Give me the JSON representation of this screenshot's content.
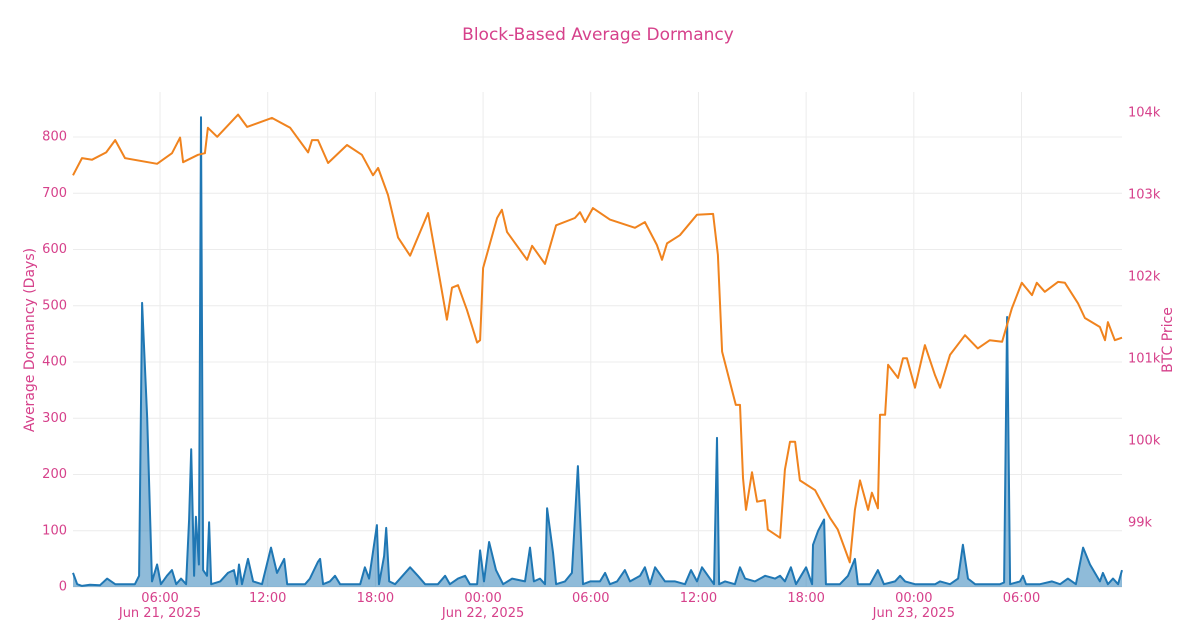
{
  "chart_data": {
    "type": "line",
    "title": "Block-Based Average Dormancy",
    "ylabel": "Average Dormancy (Days)",
    "y2label": "BTC Price",
    "grid": true,
    "xlim": [
      "2025-06-21 01:09",
      "2025-06-23 11:36"
    ],
    "xticks": [
      {
        "value": "2025-06-21 06:00",
        "label": "06:00\nJun 21, 2025"
      },
      {
        "value": "2025-06-21 12:00",
        "label": "12:00"
      },
      {
        "value": "2025-06-21 18:00",
        "label": "18:00"
      },
      {
        "value": "2025-06-22 00:00",
        "label": "00:00\nJun 22, 2025"
      },
      {
        "value": "2025-06-22 06:00",
        "label": "06:00"
      },
      {
        "value": "2025-06-22 12:00",
        "label": "12:00"
      },
      {
        "value": "2025-06-22 18:00",
        "label": "18:00"
      },
      {
        "value": "2025-06-23 00:00",
        "label": "00:00\nJun 23, 2025"
      },
      {
        "value": "2025-06-23 06:00",
        "label": "06:00"
      }
    ],
    "ylim": [
      0,
      880
    ],
    "yticks": [
      0,
      100,
      200,
      300,
      400,
      500,
      600,
      700,
      800
    ],
    "y2lim": [
      98220,
      104256
    ],
    "y2ticks": [
      {
        "value": 99000,
        "label": "99k"
      },
      {
        "value": 100000,
        "label": "100k"
      },
      {
        "value": 101000,
        "label": "101k"
      },
      {
        "value": 102000,
        "label": "102k"
      },
      {
        "value": 103000,
        "label": "103k"
      },
      {
        "value": 104000,
        "label": "104k"
      }
    ],
    "series": [
      {
        "color": "#1f77b4",
        "fill": "rgba(31,119,180,0.5)",
        "x": [
          "2025-06-21 01:09",
          "2025-06-21 01:23",
          "2025-06-21 01:39",
          "2025-06-21 02:06",
          "2025-06-21 02:39",
          "2025-06-21 03:03",
          "2025-06-21 03:30",
          "2025-06-21 04:36",
          "2025-06-21 04:50",
          "2025-06-21 05:00",
          "2025-06-21 05:17",
          "2025-06-21 05:33",
          "2025-06-21 05:50",
          "2025-06-21 06:03",
          "2025-06-21 06:23",
          "2025-06-21 06:40",
          "2025-06-21 06:54",
          "2025-06-21 07:10",
          "2025-06-21 07:27",
          "2025-06-21 07:37",
          "2025-06-21 07:44",
          "2025-06-21 07:54",
          "2025-06-21 08:00",
          "2025-06-21 08:10",
          "2025-06-21 08:17",
          "2025-06-21 08:24",
          "2025-06-21 08:37",
          "2025-06-21 08:44",
          "2025-06-21 08:51",
          "2025-06-21 09:21",
          "2025-06-21 09:47",
          "2025-06-21 10:07",
          "2025-06-21 10:17",
          "2025-06-21 10:24",
          "2025-06-21 10:34",
          "2025-06-21 10:54",
          "2025-06-21 11:11",
          "2025-06-21 11:41",
          "2025-06-21 12:11",
          "2025-06-21 12:31",
          "2025-06-21 12:55",
          "2025-06-21 13:05",
          "2025-06-21 14:05",
          "2025-06-21 14:21",
          "2025-06-21 14:48",
          "2025-06-21 14:55",
          "2025-06-21 15:05",
          "2025-06-21 15:28",
          "2025-06-21 15:45",
          "2025-06-21 16:02",
          "2025-06-21 17:09",
          "2025-06-21 17:25",
          "2025-06-21 17:39",
          "2025-06-21 18:05",
          "2025-06-21 18:12",
          "2025-06-21 18:29",
          "2025-06-21 18:36",
          "2025-06-21 18:46",
          "2025-06-21 19:06",
          "2025-06-21 19:56",
          "2025-06-21 20:22",
          "2025-06-21 20:46",
          "2025-06-21 21:29",
          "2025-06-21 21:53",
          "2025-06-21 22:09",
          "2025-06-21 22:36",
          "2025-06-21 23:00",
          "2025-06-21 23:16",
          "2025-06-21 23:40",
          "2025-06-21 23:50",
          "2025-06-22 00:03",
          "2025-06-22 00:20",
          "2025-06-22 00:43",
          "2025-06-22 01:07",
          "2025-06-22 01:37",
          "2025-06-22 02:20",
          "2025-06-22 02:37",
          "2025-06-22 02:50",
          "2025-06-22 03:10",
          "2025-06-22 03:27",
          "2025-06-22 03:34",
          "2025-06-22 03:54",
          "2025-06-22 04:04",
          "2025-06-22 04:34",
          "2025-06-22 04:57",
          "2025-06-22 05:17",
          "2025-06-22 05:34",
          "2025-06-22 05:58",
          "2025-06-22 06:31",
          "2025-06-22 06:48",
          "2025-06-22 07:04",
          "2025-06-22 07:28",
          "2025-06-22 07:54",
          "2025-06-22 08:11",
          "2025-06-22 08:45",
          "2025-06-22 09:01",
          "2025-06-22 09:18",
          "2025-06-22 09:35",
          "2025-06-22 10:08",
          "2025-06-22 10:42",
          "2025-06-22 11:15",
          "2025-06-22 11:35",
          "2025-06-22 11:55",
          "2025-06-22 12:12",
          "2025-06-22 12:32",
          "2025-06-22 12:52",
          "2025-06-22 13:02",
          "2025-06-22 13:09",
          "2025-06-22 13:29",
          "2025-06-22 14:02",
          "2025-06-22 14:19",
          "2025-06-22 14:36",
          "2025-06-22 15:09",
          "2025-06-22 15:43",
          "2025-06-22 16:16",
          "2025-06-22 16:33",
          "2025-06-22 16:49",
          "2025-06-22 17:09",
          "2025-06-22 17:26",
          "2025-06-22 18:00",
          "2025-06-22 18:20",
          "2025-06-22 18:23",
          "2025-06-22 18:40",
          "2025-06-22 19:00",
          "2025-06-22 19:06",
          "2025-06-22 19:53",
          "2025-06-22 20:20",
          "2025-06-22 20:43",
          "2025-06-22 20:53",
          "2025-06-22 21:34",
          "2025-06-22 22:00",
          "2025-06-22 22:20",
          "2025-06-22 22:57",
          "2025-06-22 23:14",
          "2025-06-22 23:31",
          "2025-06-23 00:04",
          "2025-06-23 00:37",
          "2025-06-23 01:11",
          "2025-06-23 01:28",
          "2025-06-23 02:01",
          "2025-06-23 02:28",
          "2025-06-23 02:44",
          "2025-06-23 03:01",
          "2025-06-23 03:25",
          "2025-06-23 04:15",
          "2025-06-23 04:48",
          "2025-06-23 05:02",
          "2025-06-23 05:12",
          "2025-06-23 05:22",
          "2025-06-23 05:55",
          "2025-06-23 06:05",
          "2025-06-23 06:15",
          "2025-06-23 07:02",
          "2025-06-23 07:42",
          "2025-06-23 08:09",
          "2025-06-23 08:35",
          "2025-06-23 09:02",
          "2025-06-23 09:26",
          "2025-06-23 09:49",
          "2025-06-23 10:22",
          "2025-06-23 10:32",
          "2025-06-23 10:49",
          "2025-06-23 11:06",
          "2025-06-23 11:23",
          "2025-06-23 11:36"
        ],
        "values": [
          25,
          5,
          2,
          4,
          3,
          15,
          5,
          5,
          20,
          505,
          300,
          10,
          40,
          5,
          20,
          30,
          5,
          15,
          5,
          120,
          245,
          20,
          125,
          40,
          835,
          30,
          20,
          115,
          5,
          10,
          25,
          30,
          5,
          40,
          5,
          50,
          10,
          5,
          70,
          25,
          50,
          5,
          5,
          15,
          45,
          50,
          5,
          10,
          20,
          5,
          5,
          35,
          15,
          110,
          5,
          55,
          105,
          10,
          5,
          35,
          20,
          5,
          5,
          20,
          5,
          15,
          20,
          5,
          5,
          65,
          10,
          80,
          30,
          5,
          15,
          10,
          70,
          10,
          15,
          5,
          140,
          60,
          5,
          10,
          25,
          215,
          5,
          10,
          10,
          25,
          5,
          10,
          30,
          10,
          20,
          35,
          5,
          35,
          10,
          10,
          5,
          30,
          10,
          35,
          20,
          5,
          265,
          5,
          10,
          5,
          35,
          15,
          10,
          20,
          15,
          20,
          10,
          35,
          5,
          35,
          5,
          75,
          100,
          120,
          5,
          5,
          20,
          50,
          5,
          5,
          30,
          5,
          10,
          20,
          10,
          5,
          5,
          5,
          10,
          5,
          15,
          75,
          15,
          5,
          5,
          5,
          8,
          480,
          5,
          10,
          20,
          5,
          5,
          10,
          5,
          15,
          5,
          70,
          40,
          10,
          25,
          5,
          15,
          5,
          30
        ]
      },
      {
        "color": "#f0831e",
        "axis": "y2",
        "x": [
          "2025-06-21 01:09",
          "2025-06-21 01:39",
          "2025-06-21 02:13",
          "2025-06-21 03:00",
          "2025-06-21 03:30",
          "2025-06-21 04:03",
          "2025-06-21 05:50",
          "2025-06-21 06:40",
          "2025-06-21 07:07",
          "2025-06-21 07:17",
          "2025-06-21 08:07",
          "2025-06-21 08:30",
          "2025-06-21 08:40",
          "2025-06-21 09:11",
          "2025-06-21 10:21",
          "2025-06-21 10:51",
          "2025-06-21 12:14",
          "2025-06-21 13:15",
          "2025-06-21 14:15",
          "2025-06-21 14:28",
          "2025-06-21 14:48",
          "2025-06-21 15:22",
          "2025-06-21 16:25",
          "2025-06-21 17:15",
          "2025-06-21 17:52",
          "2025-06-21 18:09",
          "2025-06-21 18:42",
          "2025-06-21 19:16",
          "2025-06-21 19:56",
          "2025-06-21 20:56",
          "2025-06-21 21:36",
          "2025-06-21 21:59",
          "2025-06-21 22:16",
          "2025-06-21 22:36",
          "2025-06-21 23:06",
          "2025-06-21 23:40",
          "2025-06-21 23:50",
          "2025-06-22 00:00",
          "2025-06-22 00:47",
          "2025-06-22 01:03",
          "2025-06-22 01:20",
          "2025-06-22 02:27",
          "2025-06-22 02:44",
          "2025-06-22 03:27",
          "2025-06-22 04:04",
          "2025-06-22 05:07",
          "2025-06-22 05:24",
          "2025-06-22 05:41",
          "2025-06-22 06:07",
          "2025-06-22 07:04",
          "2025-06-22 08:28",
          "2025-06-22 09:01",
          "2025-06-22 09:41",
          "2025-06-22 09:58",
          "2025-06-22 10:15",
          "2025-06-22 10:58",
          "2025-06-22 11:55",
          "2025-06-22 12:49",
          "2025-06-22 13:05",
          "2025-06-22 13:19",
          "2025-06-22 14:05",
          "2025-06-22 14:19",
          "2025-06-22 14:29",
          "2025-06-22 14:39",
          "2025-06-22 14:59",
          "2025-06-22 15:16",
          "2025-06-22 15:42",
          "2025-06-22 15:52",
          "2025-06-22 16:33",
          "2025-06-22 16:49",
          "2025-06-22 17:06",
          "2025-06-22 17:23",
          "2025-06-22 17:39",
          "2025-06-22 18:30",
          "2025-06-22 19:20",
          "2025-06-22 19:46",
          "2025-06-22 20:26",
          "2025-06-22 20:43",
          "2025-06-22 21:00",
          "2025-06-22 21:27",
          "2025-06-22 21:40",
          "2025-06-22 22:00",
          "2025-06-22 22:07",
          "2025-06-22 22:24",
          "2025-06-22 22:34",
          "2025-06-22 23:07",
          "2025-06-22 23:24",
          "2025-06-22 23:37",
          "2025-06-23 00:04",
          "2025-06-23 00:37",
          "2025-06-23 01:11",
          "2025-06-23 01:28",
          "2025-06-23 02:01",
          "2025-06-23 02:51",
          "2025-06-23 03:34",
          "2025-06-23 04:14",
          "2025-06-23 04:55",
          "2025-06-23 05:28",
          "2025-06-23 06:01",
          "2025-06-23 06:35",
          "2025-06-23 06:51",
          "2025-06-23 07:18",
          "2025-06-23 08:02",
          "2025-06-23 08:25",
          "2025-06-23 09:09",
          "2025-06-23 09:32",
          "2025-06-23 10:22",
          "2025-06-23 10:39",
          "2025-06-23 10:49",
          "2025-06-23 11:12",
          "2025-06-23 11:36"
        ],
        "values": [
          103240,
          103450,
          103430,
          103520,
          103670,
          103450,
          103380,
          103510,
          103700,
          103400,
          103490,
          103510,
          103820,
          103710,
          103980,
          103830,
          103940,
          103820,
          103520,
          103670,
          103670,
          103390,
          103610,
          103490,
          103240,
          103330,
          103000,
          102480,
          102260,
          102780,
          101960,
          101480,
          101870,
          101900,
          101600,
          101200,
          101230,
          102110,
          102720,
          102820,
          102550,
          102210,
          102380,
          102160,
          102630,
          102720,
          102790,
          102670,
          102840,
          102700,
          102600,
          102670,
          102390,
          102210,
          102410,
          102510,
          102760,
          102770,
          102270,
          101090,
          100440,
          100440,
          99550,
          99160,
          99620,
          99260,
          99280,
          98920,
          98820,
          99650,
          99990,
          99990,
          99520,
          99400,
          99060,
          98920,
          98520,
          99160,
          99520,
          99160,
          99370,
          99180,
          100320,
          100320,
          100930,
          100770,
          101010,
          101010,
          100650,
          101170,
          100800,
          100650,
          101050,
          101290,
          101130,
          101230,
          101210,
          101620,
          101930,
          101780,
          101930,
          101820,
          101940,
          101930,
          101680,
          101500,
          101390,
          101230,
          101450,
          101230,
          101260
        ]
      }
    ]
  }
}
